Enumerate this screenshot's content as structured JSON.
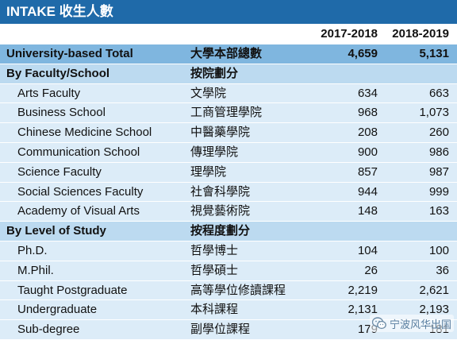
{
  "title": "INTAKE 收生人數",
  "columns": {
    "year1": "2017-2018",
    "year2": "2018-2019"
  },
  "total": {
    "en": "University-based Total",
    "zh": "大學本部總數",
    "y1": "4,659",
    "y2": "5,131"
  },
  "faculty_section": {
    "en": "By Faculty/School",
    "zh": "按院劃分"
  },
  "faculty_rows": [
    {
      "en": "Arts Faculty",
      "zh": "文學院",
      "y1": "634",
      "y2": "663"
    },
    {
      "en": "Business School",
      "zh": "工商管理學院",
      "y1": "968",
      "y2": "1,073"
    },
    {
      "en": "Chinese Medicine School",
      "zh": "中醫藥學院",
      "y1": "208",
      "y2": "260"
    },
    {
      "en": "Communication School",
      "zh": "傳理學院",
      "y1": "900",
      "y2": "986"
    },
    {
      "en": "Science Faculty",
      "zh": "理學院",
      "y1": "857",
      "y2": "987"
    },
    {
      "en": "Social Sciences Faculty",
      "zh": "社會科學院",
      "y1": "944",
      "y2": "999"
    },
    {
      "en": "Academy of Visual Arts",
      "zh": "視覺藝術院",
      "y1": "148",
      "y2": "163"
    }
  ],
  "level_section": {
    "en": "By Level of Study",
    "zh": "按程度劃分"
  },
  "level_rows": [
    {
      "en": "Ph.D.",
      "zh": "哲學博士",
      "y1": "104",
      "y2": "100"
    },
    {
      "en": "M.Phil.",
      "zh": "哲學碩士",
      "y1": "26",
      "y2": "36"
    },
    {
      "en": "Taught Postgraduate",
      "zh": "高等學位修讀課程",
      "y1": "2,219",
      "y2": "2,621"
    },
    {
      "en": "Undergraduate",
      "zh": "本科課程",
      "y1": "2,131",
      "y2": "2,193"
    },
    {
      "en": "Sub-degree",
      "zh": "副學位課程",
      "y1": "179",
      "y2": "181"
    }
  ],
  "watermark": {
    "text": "宁波风华出国",
    "icon": "wechat-icon"
  }
}
